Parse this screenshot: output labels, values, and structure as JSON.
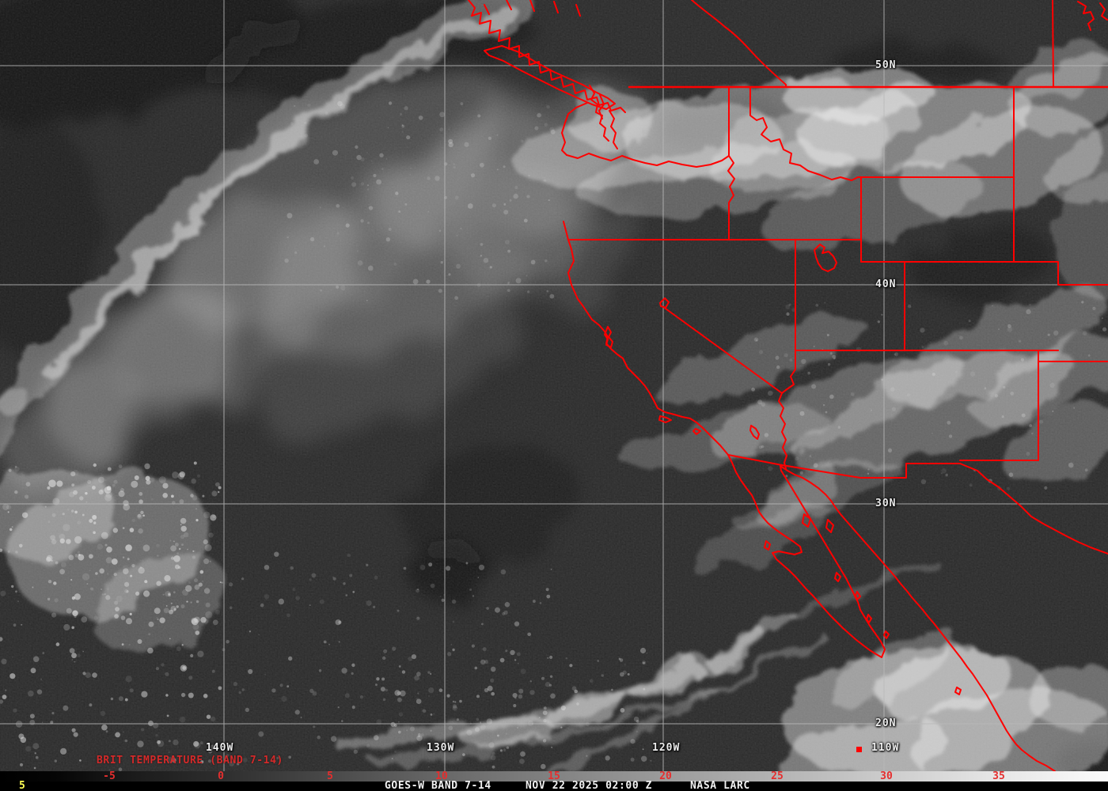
{
  "annotation": {
    "product_label": "BRIT TEMPERATURE (BAND 7-14)"
  },
  "map_labels": {
    "lat": [
      "50N",
      "40N",
      "30N",
      "20N"
    ],
    "lon": [
      "140W",
      "130W",
      "120W",
      "110W"
    ]
  },
  "colorbar": {
    "ticks": [
      "-5",
      "0",
      "5",
      "10",
      "15",
      "20",
      "25",
      "30",
      "35"
    ],
    "unit_scale": "brightness temperature"
  },
  "statusbar": {
    "frame_counter": "5",
    "product": "GOES-W BAND 7-14",
    "datetime": "NOV 22 2025 02:00 Z",
    "credit": "NASA LARC"
  },
  "colors": {
    "map_overlay_red": "#ff0000",
    "gridline_gray": "#b9b9b9",
    "coordinate_label_white": "#ededed",
    "tick_label_red": "#e62e2e",
    "annotation_red": "#d42a2a",
    "frame_counter_yellow": "#ffff55",
    "statusbar_background": "#000000",
    "ocean_background": "#232323"
  }
}
